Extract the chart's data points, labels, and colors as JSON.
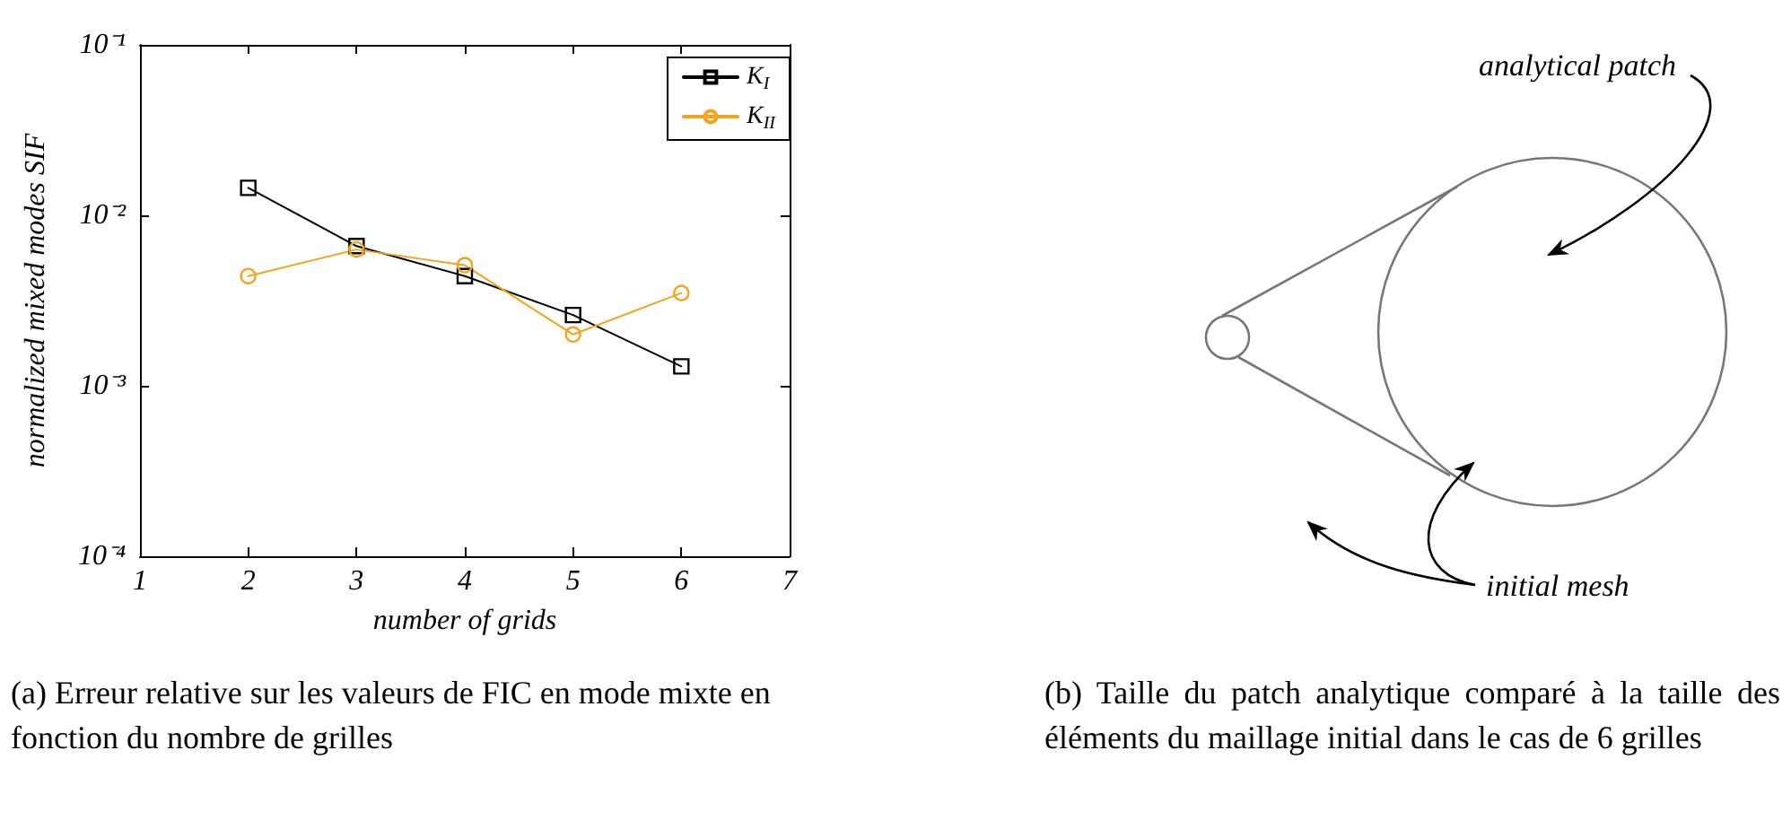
{
  "chart_data": [
    {
      "type": "line",
      "xlabel": "number of grids",
      "ylabel": "normalized mixed modes SIF",
      "x": [
        2,
        3,
        4,
        5,
        6
      ],
      "series": [
        {
          "name": "K$_{I}$",
          "color": "#000000",
          "marker": "square",
          "values": [
            0.0145,
            0.0066,
            0.0044,
            0.0026,
            0.0013
          ]
        },
        {
          "name": "K$_{II}$",
          "color": "#f5a31a",
          "marker": "circle",
          "values": [
            0.0044,
            0.0063,
            0.0051,
            0.002,
            0.0035
          ]
        }
      ],
      "xlim": [
        1,
        7
      ],
      "xticks": [
        1,
        2,
        3,
        4,
        5,
        6,
        7
      ],
      "ylim": [
        0.0001,
        0.1
      ],
      "yticks": [
        {
          "value": 0.0001,
          "label": "10⁻⁴"
        },
        {
          "value": 0.001,
          "label": "10⁻³"
        },
        {
          "value": 0.01,
          "label": "10⁻²"
        },
        {
          "value": 0.1,
          "label": "10⁻¹"
        }
      ],
      "log": "y",
      "grid": false,
      "legend": "top right",
      "line_style": "solid",
      "annotations": [
        "(a)  Erreur relative sur les valeurs de FIC en mode mixte en fonction du nombre de grilles"
      ]
    },
    {
      "type": "other",
      "annotations": [
        "analytical patch",
        "initial mesh",
        "(b)  Taille du patch analytique comparé à la taille des éléments du maillage initial dans le cas de 6 grilles"
      ]
    }
  ]
}
